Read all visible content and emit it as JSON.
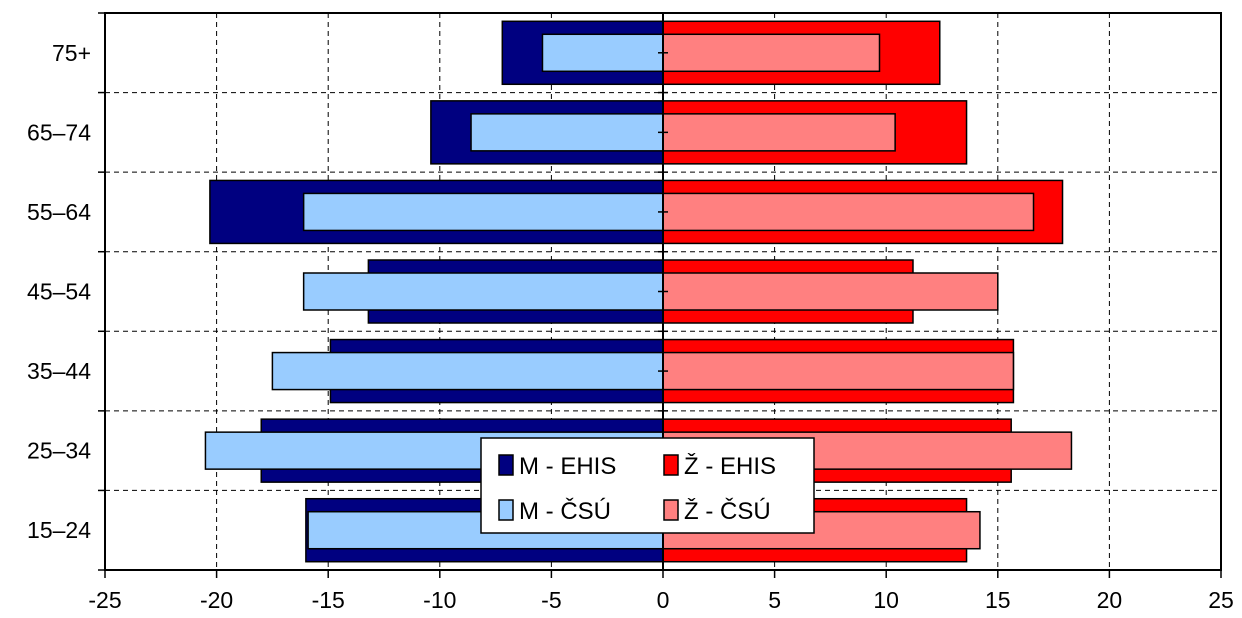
{
  "chart_data": {
    "type": "bar",
    "orientation": "horizontal",
    "layout": "population-pyramid",
    "categories": [
      "15–24",
      "25–34",
      "35–44",
      "45–54",
      "55–64",
      "65–74",
      "75+"
    ],
    "series": [
      {
        "name": "M - EHIS",
        "color": "#000080",
        "values": [
          -16.0,
          -18.0,
          -14.9,
          -13.2,
          -20.3,
          -10.4,
          -7.2
        ]
      },
      {
        "name": "Ž - EHIS",
        "color": "#ff0000",
        "values": [
          13.6,
          15.6,
          15.7,
          11.2,
          17.9,
          13.6,
          12.4
        ]
      },
      {
        "name": "M - ČSÚ",
        "color": "#99ccff",
        "values": [
          -15.9,
          -20.5,
          -17.5,
          -16.1,
          -16.1,
          -8.6,
          -5.4
        ]
      },
      {
        "name": "Ž - ČSÚ",
        "color": "#ff8080",
        "values": [
          14.2,
          18.3,
          15.7,
          15.0,
          16.6,
          10.4,
          9.7
        ]
      }
    ],
    "x_ticks": [
      "-25",
      "-20",
      "-15",
      "-10",
      "-5",
      "0",
      "5",
      "10",
      "15",
      "20",
      "25"
    ],
    "xlim": [
      -25,
      25
    ],
    "xlabel": "",
    "ylabel": "",
    "title": "",
    "grid": "dashed",
    "legend_position": "bottom-center"
  }
}
